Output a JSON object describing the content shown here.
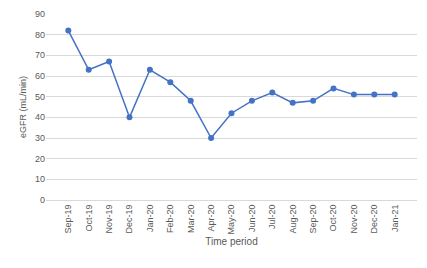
{
  "chart_data": {
    "type": "line",
    "categories": [
      "Sep-19",
      "Oct-19",
      "Nov-19",
      "Dec-19",
      "Jan-20",
      "Feb-20",
      "Mar-20",
      "Apr-20",
      "May-20",
      "Jun-20",
      "Jul-20",
      "Aug-20",
      "Sep-20",
      "Oct-20",
      "Nov-20",
      "Dec-20",
      "Jan-21"
    ],
    "values": [
      82,
      63,
      67,
      40,
      63,
      57,
      48,
      30,
      42,
      48,
      52,
      47,
      48,
      54,
      51,
      51,
      51
    ],
    "x_label": "Time period",
    "y_label": "eGFR (mL/min)",
    "color": "#4472c4",
    "marker": "circle",
    "ylim": [
      0,
      90
    ],
    "yticks": [
      0,
      10,
      20,
      30,
      40,
      50,
      60,
      70,
      80,
      90
    ],
    "grid": true
  }
}
